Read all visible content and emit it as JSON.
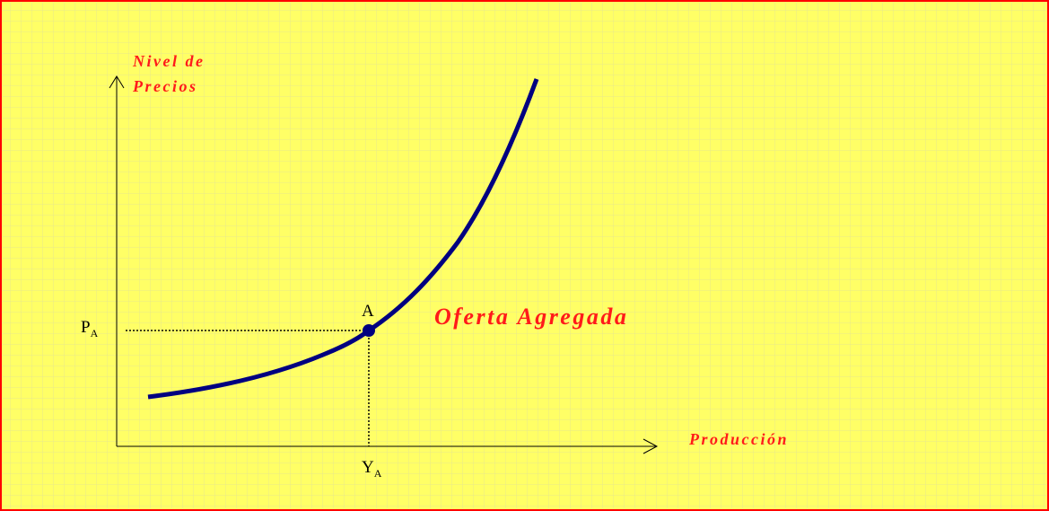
{
  "axes": {
    "y_label": [
      "Nivel de",
      "Precios"
    ],
    "x_label": "Producción"
  },
  "curve_label": "Oferta Agregada",
  "point": {
    "label": "A",
    "price_label": {
      "main": "P",
      "sub": "A"
    },
    "output_label": {
      "main": "Y",
      "sub": "A"
    }
  }
}
